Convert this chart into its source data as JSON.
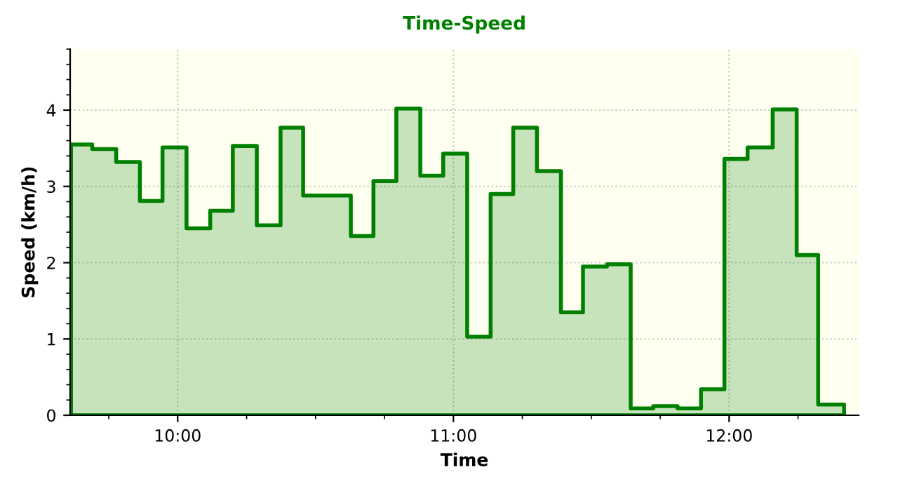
{
  "chart_data": {
    "type": "area",
    "title": "Time-Speed",
    "xlabel": "Time",
    "ylabel": "Speed (km/h)",
    "x": [
      9.613,
      9.69,
      9.777,
      9.863,
      9.945,
      10.032,
      10.118,
      10.2,
      10.287,
      10.373,
      10.455,
      10.628,
      10.71,
      10.793,
      10.88,
      10.963,
      11.05,
      11.135,
      11.217,
      11.303,
      11.39,
      11.47,
      11.557,
      11.643,
      11.725,
      11.813,
      11.898,
      11.983,
      12.067,
      12.158,
      12.245,
      12.323,
      12.417
    ],
    "series": [
      {
        "color": "#008000",
        "values": [
          3.55,
          3.49,
          3.32,
          2.81,
          3.51,
          2.45,
          2.68,
          3.53,
          2.49,
          3.77,
          2.88,
          2.35,
          3.07,
          4.02,
          3.14,
          3.43,
          1.03,
          2.9,
          3.77,
          3.2,
          1.35,
          1.95,
          1.98,
          0.09,
          0.12,
          0.09,
          0.34,
          3.36,
          3.51,
          4.01,
          2.1,
          0.14,
          0.14
        ]
      }
    ],
    "xlim": [
      9.61,
      12.47
    ],
    "ylim": [
      0,
      4.8
    ],
    "xticks": [
      {
        "value": 10,
        "label": "10:00"
      },
      {
        "value": 11,
        "label": "11:00"
      },
      {
        "value": 12,
        "label": "12:00"
      }
    ],
    "yticks": [
      0,
      1,
      2,
      3,
      4
    ],
    "grid": true
  }
}
